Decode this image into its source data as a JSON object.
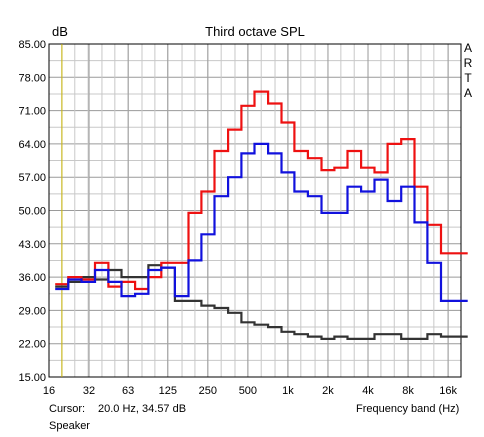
{
  "chart_data": {
    "type": "line",
    "title": "Third octave SPL",
    "ylabel": "dB",
    "xlabel": "Frequency band (Hz)",
    "side_label": [
      "A",
      "R",
      "T",
      "A"
    ],
    "ylim": [
      15,
      85
    ],
    "x_scale": "log",
    "xlim": [
      16,
      20000
    ],
    "grid": true,
    "y_ticks": [
      "85.00",
      "78.00",
      "71.00",
      "64.00",
      "57.00",
      "50.00",
      "43.00",
      "36.00",
      "29.00",
      "22.00",
      "15.00"
    ],
    "x_ticks": [
      {
        "label": "16",
        "value": 16
      },
      {
        "label": "32",
        "value": 32
      },
      {
        "label": "63",
        "value": 63
      },
      {
        "label": "125",
        "value": 125
      },
      {
        "label": "250",
        "value": 250
      },
      {
        "label": "500",
        "value": 500
      },
      {
        "label": "1k",
        "value": 1000
      },
      {
        "label": "2k",
        "value": 2000
      },
      {
        "label": "4k",
        "value": 4000
      },
      {
        "label": "8k",
        "value": 8000
      },
      {
        "label": "16k",
        "value": 16000
      }
    ],
    "bands": [
      20,
      25,
      31.5,
      40,
      50,
      63,
      80,
      100,
      125,
      160,
      200,
      250,
      315,
      400,
      500,
      630,
      800,
      1000,
      1250,
      1600,
      2000,
      2500,
      3150,
      4000,
      5000,
      6300,
      8000,
      10000,
      12500,
      16000,
      20000
    ],
    "series": [
      {
        "color": "#ee1111",
        "values": [
          34.5,
          36,
          35.5,
          39,
          34,
          35,
          33.5,
          36,
          39,
          39,
          49.5,
          54,
          62.5,
          67,
          72,
          75,
          72.5,
          68.5,
          62.5,
          61,
          58.5,
          59,
          62.5,
          59,
          58,
          64,
          65,
          55,
          47,
          41,
          41
        ]
      },
      {
        "color": "#1111dd",
        "values": [
          33.5,
          35.5,
          35,
          37.5,
          35,
          32,
          32.5,
          37.5,
          38,
          32,
          39.5,
          45,
          53,
          57,
          62,
          64,
          62,
          58,
          54,
          53,
          49.5,
          49.5,
          55,
          54,
          56.5,
          52,
          55,
          47.5,
          39,
          31,
          31
        ]
      },
      {
        "color": "#333333",
        "values": [
          34,
          35,
          36,
          35.5,
          37.5,
          36,
          36,
          38.5,
          38,
          31,
          31,
          30,
          29.5,
          28.5,
          26.5,
          26,
          25.5,
          24.5,
          24,
          23.5,
          23,
          23.5,
          23,
          23,
          24,
          24,
          23,
          23,
          24,
          23.5,
          23.5
        ]
      }
    ],
    "cursor": {
      "x": 20.0
    }
  },
  "cursor_label": "Cursor:",
  "cursor_value": "20.0 Hz, 34.57 dB",
  "device_label": "Speaker"
}
